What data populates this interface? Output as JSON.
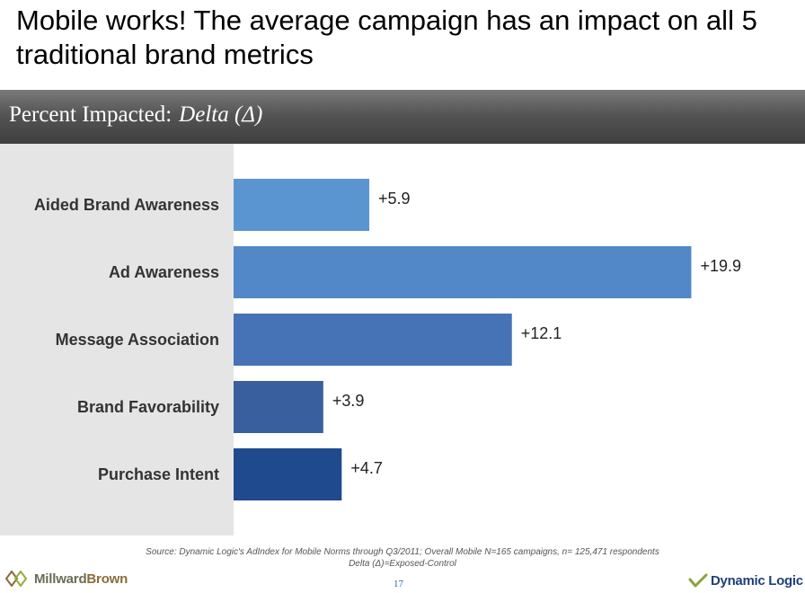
{
  "slide": {
    "title": "Mobile works! The average campaign has an impact on all 5 traditional brand metrics",
    "page_number": "17"
  },
  "header": {
    "main": "Percent Impacted:",
    "sub": "Delta (Δ)"
  },
  "chart_data": {
    "type": "bar",
    "orientation": "horizontal",
    "title": "Percent Impacted: Delta (Δ)",
    "categories": [
      "Aided Brand Awareness",
      "Ad Awareness",
      "Message Association",
      "Brand Favorability",
      "Purchase Intent"
    ],
    "values": [
      5.9,
      19.9,
      12.1,
      3.9,
      4.7
    ],
    "data_labels": [
      "+5.9",
      "+19.9",
      "+12.1",
      "+3.9",
      "+4.7"
    ],
    "xlim": [
      0,
      25
    ],
    "colors": [
      "#5a95d2",
      "#5288c8",
      "#4573b5",
      "#3a5f9f",
      "#1f4a8d"
    ],
    "grid": false,
    "legend": "none"
  },
  "footer": {
    "source_line1": "Source:  Dynamic Logic's AdIndex for Mobile Norms through Q3/2011; Overall Mobile N=165 campaigns, n= 125,471 respondents",
    "source_line2": "Delta (Δ)=Exposed-Control",
    "logo_left_part1": "Millward",
    "logo_left_part2": "Brown",
    "logo_right": "Dynamic Logic"
  }
}
